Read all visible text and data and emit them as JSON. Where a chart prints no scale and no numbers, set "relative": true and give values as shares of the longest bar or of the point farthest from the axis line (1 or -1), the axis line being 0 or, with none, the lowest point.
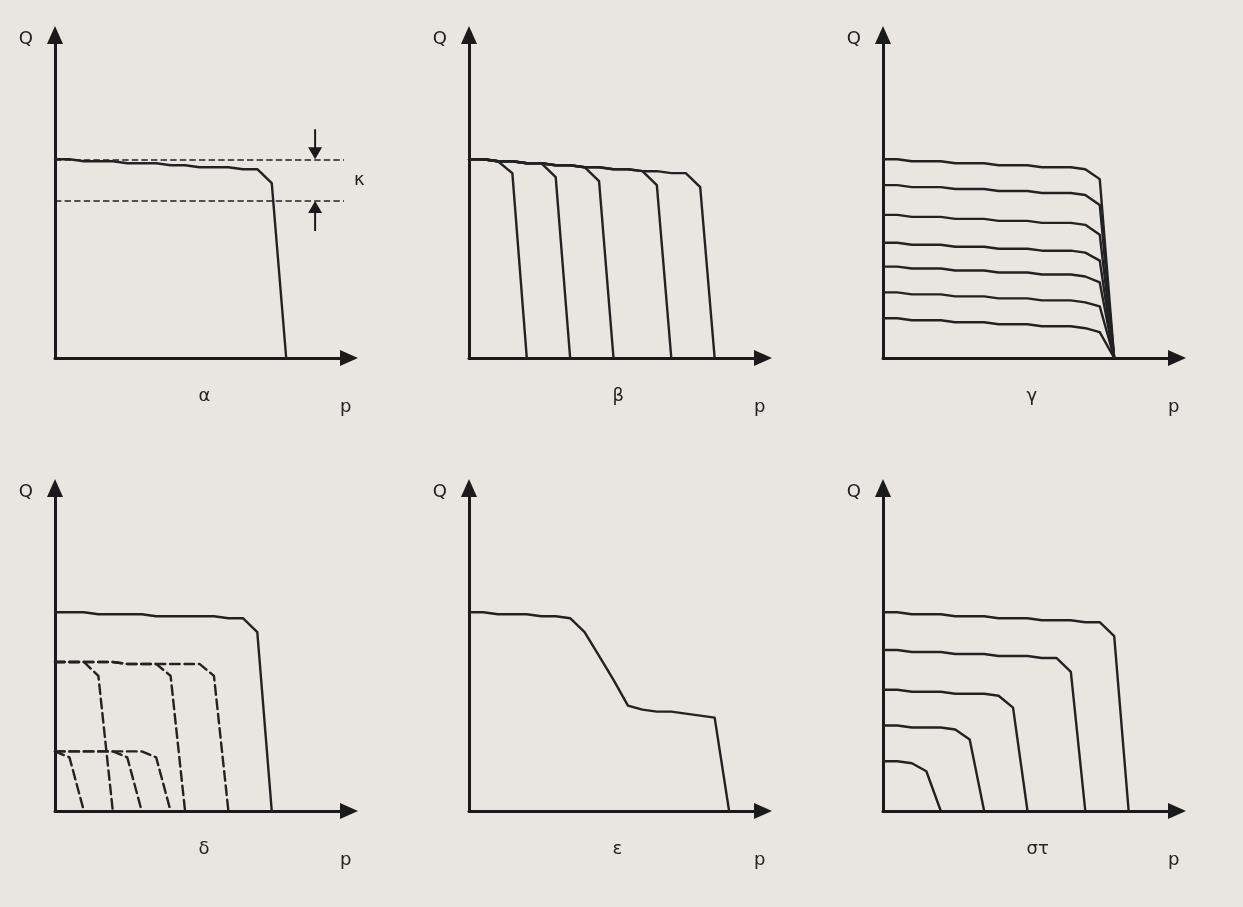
{
  "chart_data": [
    {
      "type": "line",
      "title": "α",
      "xlabel": "p",
      "ylabel": "Q",
      "relative": true,
      "marker": "none",
      "color": "#222222",
      "annotations": [
        "κ"
      ],
      "categories": [
        null,
        null,
        null,
        null,
        null,
        null,
        null,
        null,
        null,
        null,
        null,
        null,
        null,
        null,
        null,
        null,
        null,
        null,
        null,
        null,
        null
      ],
      "series": [
        {
          "values": [
            1,
            1,
            0.99,
            0.99,
            0.99,
            0.98,
            0.98,
            0.98,
            0.97,
            0.97,
            0.96,
            0.96,
            0.96,
            0.95,
            0.95,
            0.88,
            0,
            null,
            null,
            null,
            null
          ]
        }
      ],
      "ref_lines": [
        {
          "axis": "y",
          "value": 1,
          "line_style": "dashed"
        },
        {
          "axis": "y",
          "value": 0.79,
          "line_style": "dashed"
        }
      ]
    },
    {
      "type": "line",
      "title": "β",
      "xlabel": "p",
      "ylabel": "Q",
      "relative": true,
      "marker": "none",
      "color": "#222222",
      "categories": [
        null,
        null,
        null,
        null,
        null,
        null,
        null,
        null,
        null,
        null,
        null,
        null,
        null,
        null,
        null,
        null,
        null,
        null,
        null,
        null,
        null
      ],
      "series": [
        {
          "values": [
            1,
            1,
            0.99,
            0.93,
            0,
            null,
            null,
            null,
            null,
            null,
            null,
            null,
            null,
            null,
            null,
            null,
            null,
            null,
            null,
            null,
            null
          ]
        },
        {
          "values": [
            1,
            1,
            0.99,
            0.99,
            0.98,
            0.98,
            0.91,
            0,
            null,
            null,
            null,
            null,
            null,
            null,
            null,
            null,
            null,
            null,
            null,
            null,
            null
          ]
        },
        {
          "values": [
            1,
            1,
            0.99,
            0.99,
            0.98,
            0.98,
            0.97,
            0.97,
            0.96,
            0.89,
            0,
            null,
            null,
            null,
            null,
            null,
            null,
            null,
            null,
            null,
            null
          ]
        },
        {
          "values": [
            1,
            1,
            0.99,
            0.99,
            0.98,
            0.98,
            0.97,
            0.97,
            0.96,
            0.96,
            0.95,
            0.95,
            0.94,
            0.87,
            0,
            null,
            null,
            null,
            null,
            null,
            null
          ]
        },
        {
          "values": [
            1,
            1,
            0.99,
            0.99,
            0.98,
            0.98,
            0.97,
            0.97,
            0.96,
            0.96,
            0.95,
            0.95,
            0.94,
            0.94,
            0.93,
            0.93,
            0.86,
            0,
            null,
            null,
            null
          ]
        }
      ]
    },
    {
      "type": "line",
      "title": "γ",
      "xlabel": "p",
      "ylabel": "Q",
      "relative": true,
      "marker": "none",
      "color": "#222222",
      "categories": [
        null,
        null,
        null,
        null,
        null,
        null,
        null,
        null,
        null,
        null,
        null,
        null,
        null,
        null,
        null,
        null,
        null,
        null,
        null,
        null,
        null
      ],
      "series": [
        {
          "values": [
            1,
            1,
            0.99,
            0.99,
            0.99,
            0.98,
            0.98,
            0.98,
            0.97,
            0.97,
            0.97,
            0.96,
            0.96,
            0.96,
            0.95,
            0.9,
            0,
            null,
            null,
            null,
            null
          ]
        },
        {
          "values": [
            0.87,
            0.87,
            0.86,
            0.86,
            0.86,
            0.85,
            0.85,
            0.85,
            0.84,
            0.84,
            0.84,
            0.83,
            0.83,
            0.83,
            0.82,
            0.77,
            0,
            null,
            null,
            null,
            null
          ]
        },
        {
          "values": [
            0.72,
            0.72,
            0.71,
            0.71,
            0.71,
            0.7,
            0.7,
            0.7,
            0.69,
            0.69,
            0.69,
            0.68,
            0.68,
            0.68,
            0.67,
            0.62,
            0,
            null,
            null,
            null,
            null
          ]
        },
        {
          "values": [
            0.58,
            0.58,
            0.57,
            0.57,
            0.57,
            0.56,
            0.56,
            0.56,
            0.55,
            0.55,
            0.55,
            0.54,
            0.54,
            0.54,
            0.53,
            0.49,
            0,
            null,
            null,
            null,
            null
          ]
        },
        {
          "values": [
            0.46,
            0.46,
            0.45,
            0.45,
            0.45,
            0.44,
            0.44,
            0.44,
            0.43,
            0.43,
            0.43,
            0.42,
            0.42,
            0.42,
            0.41,
            0.38,
            0,
            null,
            null,
            null,
            null
          ]
        },
        {
          "values": [
            0.33,
            0.33,
            0.32,
            0.32,
            0.32,
            0.31,
            0.31,
            0.31,
            0.3,
            0.3,
            0.3,
            0.29,
            0.29,
            0.29,
            0.28,
            0.26,
            0,
            null,
            null,
            null,
            null
          ]
        },
        {
          "values": [
            0.2,
            0.2,
            0.19,
            0.19,
            0.19,
            0.18,
            0.18,
            0.18,
            0.17,
            0.17,
            0.17,
            0.16,
            0.16,
            0.16,
            0.15,
            0.13,
            0,
            null,
            null,
            null,
            null
          ]
        }
      ]
    },
    {
      "type": "line",
      "title": "δ",
      "xlabel": "p",
      "ylabel": "Q",
      "relative": true,
      "marker": "none",
      "color": "#222222",
      "categories": [
        null,
        null,
        null,
        null,
        null,
        null,
        null,
        null,
        null,
        null,
        null,
        null,
        null,
        null,
        null,
        null,
        null,
        null,
        null,
        null,
        null
      ],
      "series": [
        {
          "values": [
            1,
            1,
            1,
            0.99,
            0.99,
            0.99,
            0.99,
            0.98,
            0.98,
            0.98,
            0.98,
            0.98,
            0.97,
            0.97,
            0.9,
            0,
            null,
            null,
            null,
            null,
            null
          ]
        },
        {
          "line_style": "dashed",
          "values": [
            0.75,
            0.75,
            0.75,
            0.68,
            0,
            null,
            null,
            null,
            null,
            null,
            null,
            null,
            null,
            null,
            null,
            null,
            null,
            null,
            null,
            null,
            null
          ]
        },
        {
          "line_style": "dashed",
          "values": [
            0.75,
            0.75,
            0.75,
            0.75,
            0.75,
            0.74,
            0.74,
            0.74,
            0.68,
            0,
            null,
            null,
            null,
            null,
            null,
            null,
            null,
            null,
            null,
            null,
            null
          ]
        },
        {
          "line_style": "dashed",
          "values": [
            0.75,
            0.75,
            0.75,
            0.75,
            0.75,
            0.74,
            0.74,
            0.74,
            0.74,
            0.74,
            0.74,
            0.68,
            0,
            null,
            null,
            null,
            null,
            null,
            null,
            null,
            null
          ]
        },
        {
          "line_style": "dashed",
          "values": [
            0.3,
            0.27,
            0,
            null,
            null,
            null,
            null,
            null,
            null,
            null,
            null,
            null,
            null,
            null,
            null,
            null,
            null,
            null,
            null,
            null,
            null
          ]
        },
        {
          "line_style": "dashed",
          "values": [
            0.3,
            0.3,
            0.3,
            0.3,
            0.3,
            0.27,
            0,
            null,
            null,
            null,
            null,
            null,
            null,
            null,
            null,
            null,
            null,
            null,
            null,
            null,
            null
          ]
        },
        {
          "line_style": "dashed",
          "values": [
            0.3,
            0.3,
            0.3,
            0.3,
            0.3,
            0.3,
            0.3,
            0.27,
            0,
            null,
            null,
            null,
            null,
            null,
            null,
            null,
            null,
            null,
            null,
            null,
            null
          ]
        }
      ]
    },
    {
      "type": "line",
      "title": "ε",
      "xlabel": "p",
      "ylabel": "Q",
      "relative": true,
      "marker": "none",
      "color": "#222222",
      "categories": [
        null,
        null,
        null,
        null,
        null,
        null,
        null,
        null,
        null,
        null,
        null,
        null,
        null,
        null,
        null,
        null,
        null,
        null,
        null,
        null,
        null
      ],
      "series": [
        {
          "values": [
            1,
            1,
            0.99,
            0.99,
            0.99,
            0.98,
            0.98,
            0.97,
            0.9,
            0.78,
            0.66,
            0.53,
            0.51,
            0.5,
            0.5,
            0.49,
            0.48,
            0.47,
            0,
            null,
            null
          ]
        }
      ]
    },
    {
      "type": "line",
      "title": "στ",
      "xlabel": "p",
      "ylabel": "Q",
      "relative": true,
      "marker": "none",
      "color": "#222222",
      "categories": [
        null,
        null,
        null,
        null,
        null,
        null,
        null,
        null,
        null,
        null,
        null,
        null,
        null,
        null,
        null,
        null,
        null,
        null,
        null,
        null,
        null
      ],
      "series": [
        {
          "values": [
            1,
            1,
            0.99,
            0.99,
            0.99,
            0.98,
            0.98,
            0.98,
            0.97,
            0.97,
            0.97,
            0.96,
            0.96,
            0.96,
            0.95,
            0.95,
            0.88,
            0,
            null,
            null,
            null
          ]
        },
        {
          "values": [
            0.81,
            0.81,
            0.8,
            0.8,
            0.8,
            0.79,
            0.79,
            0.79,
            0.78,
            0.78,
            0.78,
            0.77,
            0.77,
            0.7,
            0,
            null,
            null,
            null,
            null,
            null,
            null
          ]
        },
        {
          "values": [
            0.61,
            0.61,
            0.6,
            0.6,
            0.6,
            0.59,
            0.59,
            0.59,
            0.58,
            0.52,
            0,
            null,
            null,
            null,
            null,
            null,
            null,
            null,
            null,
            null,
            null
          ]
        },
        {
          "values": [
            0.43,
            0.43,
            0.42,
            0.42,
            0.42,
            0.41,
            0.36,
            0,
            null,
            null,
            null,
            null,
            null,
            null,
            null,
            null,
            null,
            null,
            null,
            null,
            null
          ]
        },
        {
          "values": [
            0.25,
            0.25,
            0.24,
            0.2,
            0,
            null,
            null,
            null,
            null,
            null,
            null,
            null,
            null,
            null,
            null,
            null,
            null,
            null,
            null,
            null,
            null
          ]
        }
      ]
    }
  ]
}
